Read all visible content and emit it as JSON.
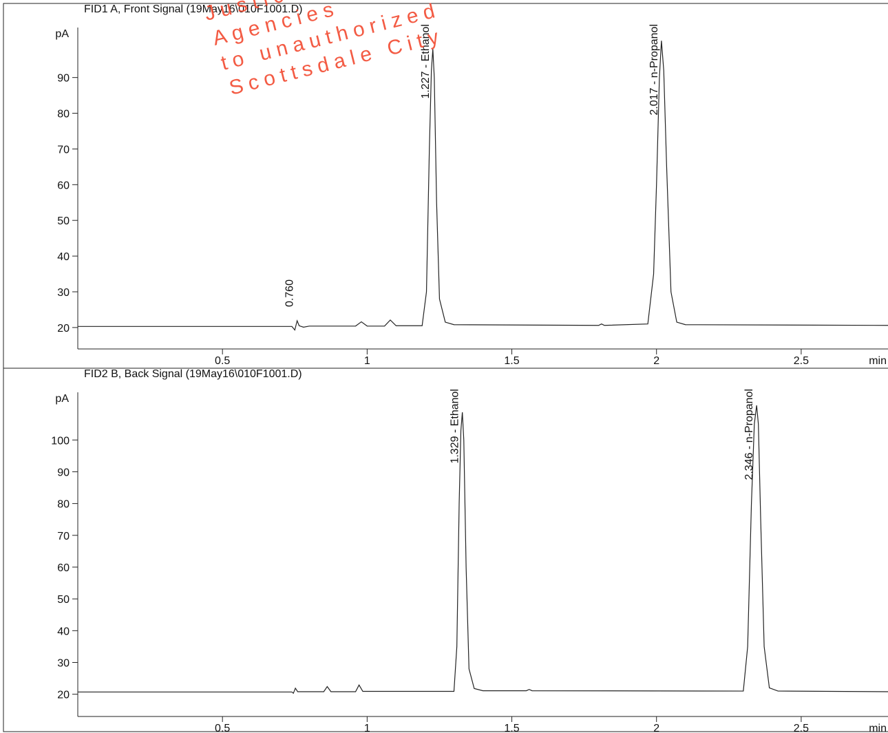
{
  "chart_data": [
    {
      "type": "line",
      "title": "FID1 A, Front Signal (19May16\\010F1001.D)",
      "y_unit": "pA",
      "x_unit": "min",
      "xlim": [
        0,
        2.8
      ],
      "xticks": [
        0.5,
        1,
        1.5,
        2,
        2.5
      ],
      "ylim": [
        14,
        104
      ],
      "yticks": [
        20,
        30,
        40,
        50,
        60,
        70,
        80,
        90
      ],
      "series": [
        {
          "color": "#222222",
          "x": [
            0,
            0.74,
            0.75,
            0.758,
            0.765,
            0.78,
            0.8,
            0.96,
            0.98,
            1.0,
            1.06,
            1.08,
            1.1,
            1.19,
            1.205,
            1.215,
            1.222,
            1.227,
            1.232,
            1.24,
            1.25,
            1.27,
            1.3,
            1.8,
            1.81,
            1.82,
            1.97,
            1.99,
            2.0,
            2.01,
            2.017,
            2.025,
            2.035,
            2.05,
            2.07,
            2.1,
            2.8
          ],
          "values": [
            20.3,
            20.3,
            19.3,
            21.9,
            20.5,
            20.1,
            20.4,
            20.4,
            21.6,
            20.4,
            20.4,
            22.1,
            20.5,
            20.5,
            30,
            70,
            92,
            98,
            90,
            55,
            28,
            21.5,
            20.8,
            20.6,
            21.0,
            20.6,
            21,
            35,
            60,
            90,
            100.3,
            92,
            65,
            30,
            21.5,
            20.8,
            20.6
          ]
        }
      ],
      "annotations": [
        {
          "text": "0.760",
          "x": 0.758,
          "y": 21.9
        },
        {
          "text": "1.227 -  Ethanol",
          "x": 1.227,
          "y": 98
        },
        {
          "text": "2.017 -  n-Propanol",
          "x": 2.017,
          "y": 100.3
        }
      ],
      "watermark": [
        "Justice",
        "Agencies",
        "to unauthorized",
        "Scottsdale City"
      ]
    },
    {
      "type": "line",
      "title": "FID2 B, Back Signal (19May16\\010F1001.D)",
      "y_unit": "pA",
      "x_unit": "min",
      "xlim": [
        0,
        2.8
      ],
      "xticks": [
        0.5,
        1,
        1.5,
        2,
        2.5
      ],
      "ylim": [
        13,
        115
      ],
      "yticks": [
        20,
        30,
        40,
        50,
        60,
        70,
        80,
        90,
        100
      ],
      "series": [
        {
          "color": "#222222",
          "x": [
            0,
            0.74,
            0.745,
            0.752,
            0.76,
            0.85,
            0.862,
            0.875,
            0.96,
            0.972,
            0.985,
            1.3,
            1.31,
            1.318,
            1.324,
            1.329,
            1.334,
            1.342,
            1.352,
            1.37,
            1.4,
            1.55,
            1.56,
            1.57,
            2.3,
            2.315,
            2.328,
            2.338,
            2.346,
            2.352,
            2.36,
            2.372,
            2.39,
            2.42,
            2.8
          ],
          "values": [
            20.7,
            20.7,
            20.3,
            21.9,
            20.8,
            20.8,
            22.4,
            20.8,
            20.8,
            22.9,
            20.9,
            20.9,
            35,
            80,
            103,
            108.7,
            100,
            60,
            28,
            21.8,
            21.1,
            21.1,
            21.5,
            21.1,
            21.0,
            35,
            80,
            105,
            110.9,
            105,
            75,
            35,
            22,
            21,
            20.8
          ]
        }
      ],
      "annotations": [
        {
          "text": "1.329 -  Ethanol",
          "x": 1.329,
          "y": 108.7
        },
        {
          "text": "2.346 -  n-Propanol",
          "x": 2.346,
          "y": 110.9
        }
      ]
    }
  ]
}
